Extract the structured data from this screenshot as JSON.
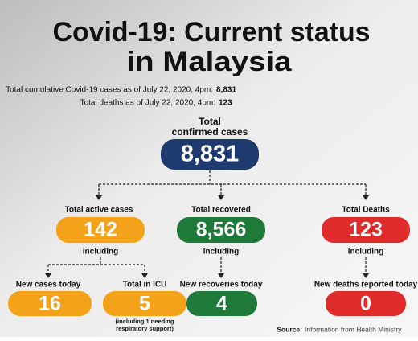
{
  "header": {
    "title_lines": [
      "Covid-19: Current status",
      "in Malaysia"
    ],
    "notes": [
      {
        "text": "Total cumulative Covid-19 cases as of July 22, 2020, 4pm:",
        "value": "8,831"
      },
      {
        "text": "Total deaths as of July 22, 2020, 4pm:",
        "value": "123"
      }
    ]
  },
  "total": {
    "label_lines": [
      "Total",
      "confirmed cases"
    ],
    "value": "8,831"
  },
  "groups": [
    {
      "label": "Total active cases",
      "value": "142",
      "connector": "including"
    },
    {
      "label": "Total recovered",
      "value": "8,566",
      "connector": "including"
    },
    {
      "label": "Total Deaths",
      "value": "123",
      "connector": "including"
    }
  ],
  "details": [
    {
      "label": "New cases today",
      "value": "16"
    },
    {
      "label": "Total in ICU",
      "value": "5",
      "note_lines": [
        "(including 1 needing",
        "respiratory support)"
      ]
    },
    {
      "label": "New recoveries today",
      "value": "4"
    },
    {
      "label": "New deaths reported today",
      "value": "0"
    }
  ],
  "source": {
    "label": "Source:",
    "text": "Information from Health Ministry"
  }
}
